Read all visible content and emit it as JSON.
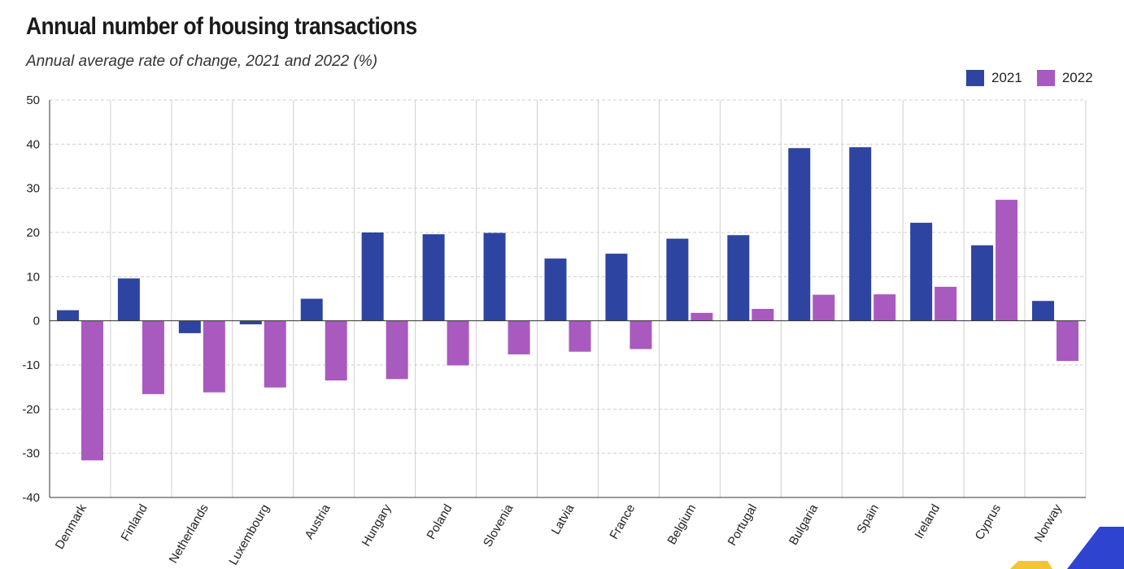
{
  "header": {
    "title": "Annual number of housing transactions",
    "subtitle": "Annual average rate of change, 2021 and 2022 (%)"
  },
  "colors": {
    "series_2021": "#2e44a1",
    "series_2022": "#a85abf",
    "grid": "#cfcfcf",
    "axis": "#333333",
    "corner_blue": "#2e44d1",
    "corner_yellow": "#f2c534"
  },
  "legend": {
    "items": [
      {
        "label": "2021"
      },
      {
        "label": "2022"
      }
    ]
  },
  "chart_data": {
    "type": "bar",
    "title": "Annual number of housing transactions",
    "subtitle": "Annual average rate of change, 2021 and 2022 (%)",
    "xlabel": "",
    "ylabel": "",
    "ylim": [
      -40,
      50
    ],
    "yticks": [
      -40,
      -30,
      -20,
      -10,
      0,
      10,
      20,
      30,
      40,
      50
    ],
    "grid": true,
    "legend_position": "top-right",
    "categories": [
      "Denmark",
      "Finland",
      "Netherlands",
      "Luxembourg",
      "Austria",
      "Hungary",
      "Poland",
      "Slovenia",
      "Latvia",
      "France",
      "Belgium",
      "Portugal",
      "Bulgaria",
      "Spain",
      "Ireland",
      "Cyprus",
      "Norway"
    ],
    "series": [
      {
        "name": "2021",
        "values": [
          2.4,
          9.6,
          -2.8,
          -0.8,
          5.0,
          20.0,
          19.6,
          19.9,
          14.1,
          15.2,
          18.6,
          19.4,
          39.1,
          39.3,
          22.2,
          17.1,
          4.5
        ]
      },
      {
        "name": "2022",
        "values": [
          -31.6,
          -16.6,
          -16.2,
          -15.1,
          -13.5,
          -13.2,
          -10.1,
          -7.6,
          -7.0,
          -6.4,
          1.8,
          2.7,
          5.9,
          6.0,
          7.7,
          27.4,
          -9.1
        ]
      }
    ]
  }
}
